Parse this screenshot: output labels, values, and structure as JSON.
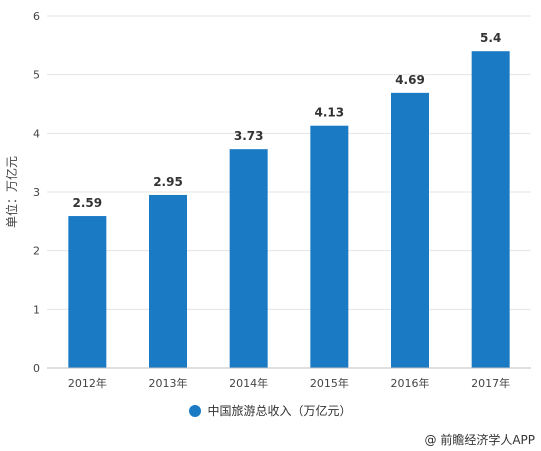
{
  "chart_data": {
    "type": "bar",
    "categories": [
      "2012年",
      "2013年",
      "2014年",
      "2015年",
      "2016年",
      "2017年"
    ],
    "series": [
      {
        "name": "中国旅游总收入（万亿元）",
        "values": [
          2.59,
          2.95,
          3.73,
          4.13,
          4.69,
          5.4
        ]
      }
    ],
    "data_labels": [
      "2.59",
      "2.95",
      "3.73",
      "4.13",
      "4.69",
      "5.4"
    ],
    "ylabel": "单位：万亿元",
    "ylim": [
      0,
      6
    ],
    "yticks": [
      0,
      1,
      2,
      3,
      4,
      5,
      6
    ],
    "grid": true,
    "legend_position": "bottom",
    "bar_color": "#1a7ac4"
  },
  "legend": {
    "label": "中国旅游总收入（万亿元）"
  },
  "credit": "@ 前瞻经济学人APP"
}
